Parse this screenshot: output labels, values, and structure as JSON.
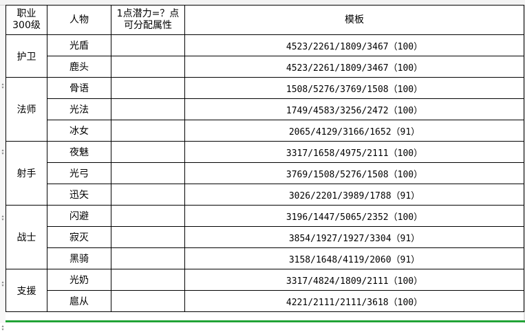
{
  "header": {
    "job": "职业\n300级",
    "character": "人物",
    "potential": "1点潜力=？点\n可分配属性",
    "template": "模板"
  },
  "groups": [
    {
      "job": "护卫",
      "rows": [
        {
          "name": "光盾",
          "potential": "",
          "template": "4523/2261/1809/3467（100）"
        },
        {
          "name": "鹿头",
          "potential": "",
          "template": "4523/2261/1809/3467（100）"
        }
      ]
    },
    {
      "job": "法师",
      "rows": [
        {
          "name": "骨语",
          "potential": "",
          "template": "1508/5276/3769/1508（100）"
        },
        {
          "name": "光法",
          "potential": "",
          "template": "1749/4583/3256/2472（100）"
        },
        {
          "name": "冰女",
          "potential": "",
          "template": "2065/4129/3166/1652（91）"
        }
      ]
    },
    {
      "job": "射手",
      "rows": [
        {
          "name": "夜魅",
          "potential": "",
          "template": "3317/1658/4975/2111（100）"
        },
        {
          "name": "光弓",
          "potential": "",
          "template": "3769/1508/5276/1508（100）"
        },
        {
          "name": "迅矢",
          "potential": "",
          "template": "3026/2201/3989/1788（91）"
        }
      ]
    },
    {
      "job": "战士",
      "rows": [
        {
          "name": "闪避",
          "potential": "",
          "template": "3196/1447/5065/2352（100）"
        },
        {
          "name": "寂灭",
          "potential": "",
          "template": "3854/1927/1927/3304（91）"
        },
        {
          "name": "黑骑",
          "potential": "",
          "template": "3158/1648/4119/2060（91）"
        }
      ]
    },
    {
      "job": "支援",
      "rows": [
        {
          "name": "光奶",
          "potential": "",
          "template": "3317/4824/1809/2111（100）"
        },
        {
          "name": "扈从",
          "potential": "",
          "template": "4221/2111/2111/3618（100）"
        }
      ]
    }
  ],
  "colors": {
    "selection_border": "#21a336"
  }
}
